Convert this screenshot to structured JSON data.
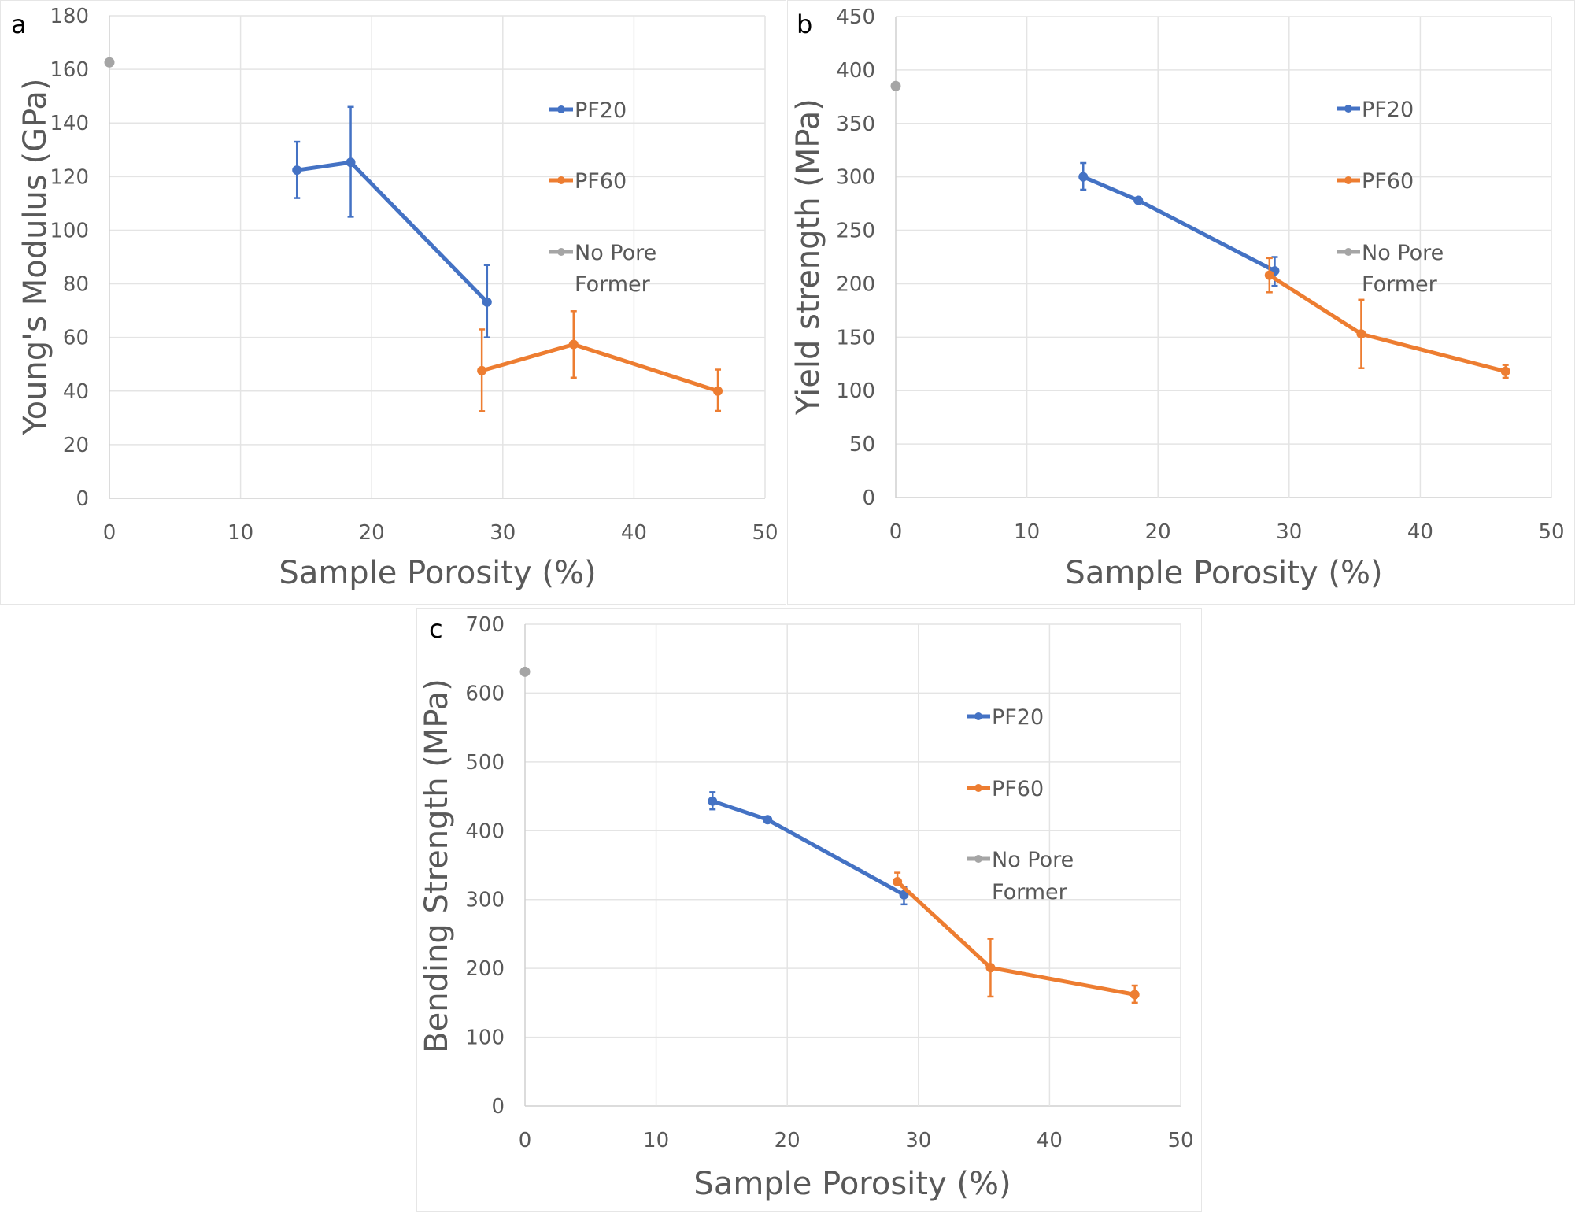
{
  "chart_data": [
    {
      "panel_label": "a",
      "type": "line",
      "title": "",
      "xlabel": "Sample Porosity (%)",
      "ylabel": "Young's  Modulus (GPa)",
      "xlim": [
        0,
        50
      ],
      "ylim": [
        0,
        180
      ],
      "xticks": [
        0,
        10,
        20,
        30,
        40,
        50
      ],
      "yticks": [
        0,
        20,
        40,
        60,
        80,
        100,
        120,
        140,
        160,
        180
      ],
      "grid": true,
      "legend_position": "top-right",
      "series": [
        {
          "name": "PF20",
          "color": "#4472C4",
          "line": true,
          "points": [
            {
              "x": 14.3,
              "y": 122.4,
              "err_low": 112,
              "err_high": 133
            },
            {
              "x": 18.4,
              "y": 125.3,
              "err_low": 105,
              "err_high": 146
            },
            {
              "x": 28.8,
              "y": 73.2,
              "err_low": 60,
              "err_high": 87
            }
          ]
        },
        {
          "name": "PF60",
          "color": "#ED7D31",
          "line": true,
          "points": [
            {
              "x": 28.4,
              "y": 47.6,
              "err_low": 32.5,
              "err_high": 63
            },
            {
              "x": 35.4,
              "y": 57.4,
              "err_low": 45,
              "err_high": 69.8
            },
            {
              "x": 46.4,
              "y": 40,
              "err_low": 32.6,
              "err_high": 48
            }
          ]
        },
        {
          "name": "No Pore Former",
          "legend_lines": [
            "No Pore",
            "Former"
          ],
          "color": "#A5A5A5",
          "line": false,
          "points": [
            {
              "x": 0,
              "y": 162.6
            }
          ]
        }
      ]
    },
    {
      "panel_label": "b",
      "type": "line",
      "title": "",
      "xlabel": "Sample Porosity (%)",
      "ylabel": "Yield strength (MPa)",
      "xlim": [
        0,
        50
      ],
      "ylim": [
        0,
        450
      ],
      "xticks": [
        0,
        10,
        20,
        30,
        40,
        50
      ],
      "yticks": [
        0,
        50,
        100,
        150,
        200,
        250,
        300,
        350,
        400,
        450
      ],
      "grid": true,
      "legend_position": "top-right",
      "series": [
        {
          "name": "PF20",
          "color": "#4472C4",
          "line": true,
          "points": [
            {
              "x": 14.3,
              "y": 300,
              "err_low": 288,
              "err_high": 313
            },
            {
              "x": 18.5,
              "y": 278,
              "err_low": null,
              "err_high": null
            },
            {
              "x": 28.9,
              "y": 212,
              "err_low": 198,
              "err_high": 225
            }
          ]
        },
        {
          "name": "PF60",
          "color": "#ED7D31",
          "line": true,
          "points": [
            {
              "x": 28.5,
              "y": 208,
              "err_low": 192,
              "err_high": 224
            },
            {
              "x": 35.5,
              "y": 153,
              "err_low": 121,
              "err_high": 185
            },
            {
              "x": 46.5,
              "y": 118,
              "err_low": 112,
              "err_high": 124
            }
          ]
        },
        {
          "name": "No Pore Former",
          "legend_lines": [
            "No Pore",
            "Former"
          ],
          "color": "#A5A5A5",
          "line": false,
          "points": [
            {
              "x": 0,
              "y": 385
            }
          ]
        }
      ]
    },
    {
      "panel_label": "c",
      "type": "line",
      "title": "",
      "xlabel": "Sample Porosity (%)",
      "ylabel": "Bending Strength (MPa)",
      "xlim": [
        0,
        50
      ],
      "ylim": [
        0,
        700
      ],
      "xticks": [
        0,
        10,
        20,
        30,
        40,
        50
      ],
      "yticks": [
        0,
        100,
        200,
        300,
        400,
        500,
        600,
        700
      ],
      "grid": true,
      "legend_position": "top-right",
      "series": [
        {
          "name": "PF20",
          "color": "#4472C4",
          "line": true,
          "points": [
            {
              "x": 14.3,
              "y": 443,
              "err_low": 431,
              "err_high": 456
            },
            {
              "x": 18.5,
              "y": 416,
              "err_low": null,
              "err_high": null
            },
            {
              "x": 28.9,
              "y": 307,
              "err_low": 293,
              "err_high": 318
            }
          ]
        },
        {
          "name": "PF60",
          "color": "#ED7D31",
          "line": true,
          "points": [
            {
              "x": 28.4,
              "y": 326,
              "err_low": null,
              "err_high": 339
            },
            {
              "x": 35.5,
              "y": 201,
              "err_low": 159,
              "err_high": 243
            },
            {
              "x": 46.5,
              "y": 162,
              "err_low": 150,
              "err_high": 175
            }
          ]
        },
        {
          "name": "No Pore Former",
          "legend_lines": [
            "No Pore",
            "Former"
          ],
          "color": "#A5A5A5",
          "line": false,
          "points": [
            {
              "x": 0,
              "y": 631
            }
          ]
        }
      ]
    }
  ]
}
